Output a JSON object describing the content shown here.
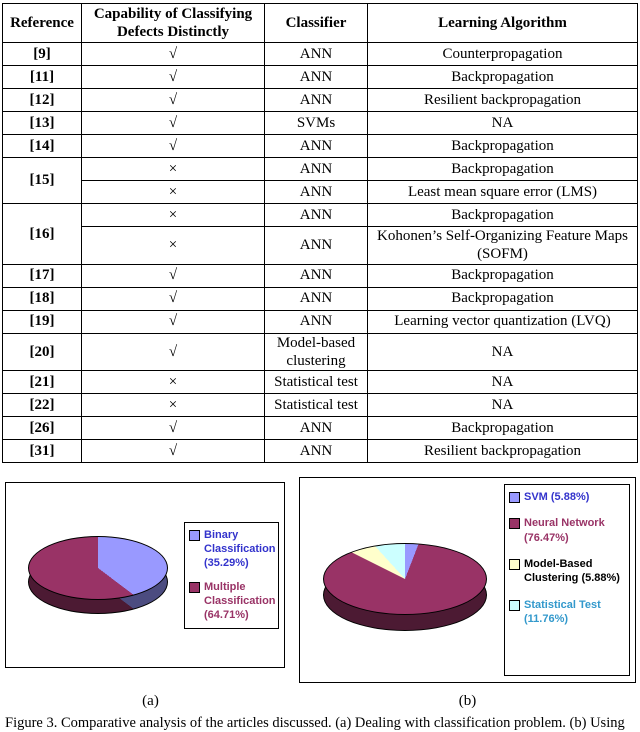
{
  "table": {
    "headers": [
      "Reference",
      "Capability of Classifying Defects Distinctly",
      "Classifier",
      "Learning Algorithm"
    ],
    "rows": [
      {
        "ref": "[9]",
        "refspan": 1,
        "capability": "√",
        "classifier": "ANN",
        "algorithm": "Counterpropagation"
      },
      {
        "ref": "[11]",
        "refspan": 1,
        "capability": "√",
        "classifier": "ANN",
        "algorithm": "Backpropagation"
      },
      {
        "ref": "[12]",
        "refspan": 1,
        "capability": "√",
        "classifier": "ANN",
        "algorithm": "Resilient backpropagation"
      },
      {
        "ref": "[13]",
        "refspan": 1,
        "capability": "√",
        "classifier": "SVMs",
        "algorithm": "NA"
      },
      {
        "ref": "[14]",
        "refspan": 1,
        "capability": "√",
        "classifier": "ANN",
        "algorithm": "Backpropagation"
      },
      {
        "ref": "[15]",
        "refspan": 2,
        "capability": "×",
        "classifier": "ANN",
        "algorithm": "Backpropagation"
      },
      {
        "ref": null,
        "capability": "×",
        "classifier": "ANN",
        "algorithm": "Least mean square error (LMS)"
      },
      {
        "ref": "[16]",
        "refspan": 2,
        "capability": "×",
        "classifier": "ANN",
        "algorithm": "Backpropagation"
      },
      {
        "ref": null,
        "capability": "×",
        "classifier": "ANN",
        "algorithm": "Kohonen’s Self-Organizing Feature Maps (SOFM)"
      },
      {
        "ref": "[17]",
        "refspan": 1,
        "capability": "√",
        "classifier": "ANN",
        "algorithm": "Backpropagation"
      },
      {
        "ref": "[18]",
        "refspan": 1,
        "capability": "√",
        "classifier": "ANN",
        "algorithm": "Backpropagation"
      },
      {
        "ref": "[19]",
        "refspan": 1,
        "capability": "√",
        "classifier": "ANN",
        "algorithm": "Learning vector quantization (LVQ)"
      },
      {
        "ref": "[20]",
        "refspan": 1,
        "capability": "√",
        "classifier": "Model-based clustering",
        "algorithm": "NA"
      },
      {
        "ref": "[21]",
        "refspan": 1,
        "capability": "×",
        "classifier": "Statistical test",
        "algorithm": "NA"
      },
      {
        "ref": "[22]",
        "refspan": 1,
        "capability": "×",
        "classifier": "Statistical test",
        "algorithm": "NA"
      },
      {
        "ref": "[26]",
        "refspan": 1,
        "capability": "√",
        "classifier": "ANN",
        "algorithm": "Backpropagation"
      },
      {
        "ref": "[31]",
        "refspan": 1,
        "capability": "√",
        "classifier": "ANN",
        "algorithm": "Resilient backpropagation"
      }
    ]
  },
  "figure": {
    "panel_a_label": "(a)",
    "panel_b_label": "(b)",
    "caption": "Figure 3.   Comparative analysis of the articles discussed. (a) Dealing with classification problem. (b) Using"
  },
  "chart_data": [
    {
      "type": "pie",
      "name": "classification-problem-pie",
      "style": "3d",
      "labels": [
        "Binary Classification (35.29%)",
        "Multiple Classification (64.71%)"
      ],
      "values": [
        35.29,
        64.71
      ],
      "colors": [
        "#9999FF",
        "#993366"
      ],
      "legend_text_colors": [
        "#3333CC",
        "#993366"
      ],
      "legend_position": "right",
      "start_angle_deg": 0,
      "direction": "clockwise"
    },
    {
      "type": "pie",
      "name": "classifier-usage-pie",
      "style": "3d",
      "labels": [
        "SVM (5.88%)",
        "Neural Network (76.47%)",
        "Model-Based Clustering (5.88%)",
        "Statistical Test (11.76%)"
      ],
      "values": [
        5.88,
        76.47,
        5.88,
        11.76
      ],
      "colors": [
        "#9999FF",
        "#993366",
        "#FFFFCC",
        "#CCFFFF"
      ],
      "legend_text_colors": [
        "#3333CC",
        "#993366",
        "#000000",
        "#3399CC"
      ],
      "legend_position": "right",
      "start_angle_deg": 0,
      "direction": "clockwise"
    }
  ]
}
